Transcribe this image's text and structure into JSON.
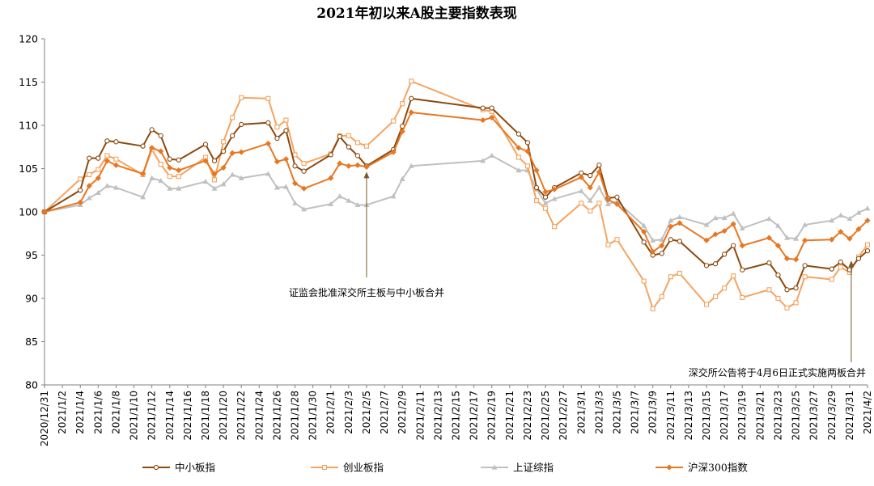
{
  "chart_data": {
    "type": "line",
    "title": "2021年初以来A股主要指数表现",
    "ylim": [
      80,
      120
    ],
    "yticks": [
      80,
      85,
      90,
      95,
      100,
      105,
      110,
      115,
      120
    ],
    "grid": false,
    "legend": "bottom",
    "x": [
      "2020/12/31",
      "2021/1/4",
      "2021/1/5",
      "2021/1/6",
      "2021/1/7",
      "2021/1/8",
      "2021/1/11",
      "2021/1/12",
      "2021/1/13",
      "2021/1/14",
      "2021/1/15",
      "2021/1/18",
      "2021/1/19",
      "2021/1/20",
      "2021/1/21",
      "2021/1/22",
      "2021/1/25",
      "2021/1/26",
      "2021/1/27",
      "2021/1/28",
      "2021/1/29",
      "2021/2/1",
      "2021/2/2",
      "2021/2/3",
      "2021/2/4",
      "2021/2/5",
      "2021/2/8",
      "2021/2/9",
      "2021/2/10",
      "2021/2/18",
      "2021/2/19",
      "2021/2/22",
      "2021/2/23",
      "2021/2/24",
      "2021/2/25",
      "2021/2/26",
      "2021/3/1",
      "2021/3/2",
      "2021/3/3",
      "2021/3/4",
      "2021/3/5",
      "2021/3/8",
      "2021/3/9",
      "2021/3/10",
      "2021/3/11",
      "2021/3/12",
      "2021/3/15",
      "2021/3/16",
      "2021/3/17",
      "2021/3/18",
      "2021/3/19",
      "2021/3/22",
      "2021/3/23",
      "2021/3/24",
      "2021/3/25",
      "2021/3/26",
      "2021/3/29",
      "2021/3/30",
      "2021/3/31",
      "2021/4/1",
      "2021/4/2"
    ],
    "x_tick_labels": [
      "2020/12/31",
      "2021/1/2",
      "2021/1/4",
      "2021/1/6",
      "2021/1/8",
      "2021/1/10",
      "2021/1/12",
      "2021/1/14",
      "2021/1/16",
      "2021/1/18",
      "2021/1/20",
      "2021/1/22",
      "2021/1/24",
      "2021/1/26",
      "2021/1/28",
      "2021/1/30",
      "2021/2/1",
      "2021/2/3",
      "2021/2/5",
      "2021/2/7",
      "2021/2/9",
      "2021/2/11",
      "2021/2/13",
      "2021/2/15",
      "2021/2/17",
      "2021/2/19",
      "2021/2/21",
      "2021/2/23",
      "2021/2/25",
      "2021/2/27",
      "2021/3/1",
      "2021/3/3",
      "2021/3/5",
      "2021/3/7",
      "2021/3/9",
      "2021/3/11",
      "2021/3/13",
      "2021/3/15",
      "2021/3/17",
      "2021/3/19",
      "2021/3/21",
      "2021/3/23",
      "2021/3/25",
      "2021/3/27",
      "2021/3/29",
      "2021/3/31",
      "2021/4/2"
    ],
    "series": [
      {
        "name": "中小板指",
        "color": "#8B4A0F",
        "marker": "circle",
        "values": [
          100,
          102.5,
          106.2,
          106.2,
          108.2,
          108.1,
          107.6,
          109.5,
          108.8,
          106.1,
          106.0,
          107.8,
          105.9,
          107.0,
          108.8,
          110.1,
          110.3,
          108.5,
          109.4,
          105.3,
          104.7,
          106.6,
          108.7,
          107.5,
          106.5,
          105.3,
          107.2,
          109.9,
          113.1,
          112.0,
          112.0,
          109.0,
          108.0,
          102.8,
          101.7,
          102.8,
          104.5,
          104.2,
          105.4,
          101.6,
          101.7,
          96.5,
          95.0,
          95.2,
          96.8,
          96.6,
          93.8,
          94.0,
          95.1,
          96.1,
          93.3,
          94.1,
          92.7,
          91.0,
          91.2,
          93.8,
          93.4,
          94.2,
          93.3,
          94.6,
          95.5
        ]
      },
      {
        "name": "创业板指",
        "color": "#F4A460",
        "marker": "square",
        "values": [
          100,
          103.8,
          104.3,
          104.9,
          106.5,
          106.1,
          104.3,
          107.2,
          105.5,
          104.1,
          104.1,
          106.3,
          103.7,
          108.1,
          110.9,
          113.2,
          113.1,
          109.8,
          110.6,
          106.6,
          105.6,
          106.7,
          108.8,
          108.8,
          108.0,
          107.6,
          110.5,
          112.5,
          115.1,
          111.8,
          111.6,
          106.3,
          105.3,
          101.3,
          100.4,
          98.3,
          101.0,
          100.1,
          101.0,
          96.2,
          96.8,
          92.0,
          88.8,
          90.2,
          92.5,
          92.9,
          89.3,
          90.2,
          91.2,
          92.6,
          90.1,
          91.0,
          90.0,
          88.9,
          89.5,
          92.5,
          92.2,
          93.6,
          93.0,
          94.8,
          96.2
        ]
      },
      {
        "name": "上证综指",
        "color": "#C0C0C0",
        "marker": "triangle",
        "values": [
          100,
          100.8,
          101.6,
          102.2,
          103.0,
          102.8,
          101.7,
          103.9,
          103.6,
          102.7,
          102.7,
          103.5,
          102.7,
          103.2,
          104.3,
          103.9,
          104.4,
          102.8,
          102.9,
          101.0,
          100.3,
          100.9,
          101.8,
          101.3,
          100.8,
          100.8,
          101.8,
          103.8,
          105.3,
          105.9,
          106.5,
          104.8,
          104.8,
          102.6,
          101.0,
          101.5,
          102.4,
          101.3,
          102.8,
          100.9,
          101.2,
          98.4,
          96.7,
          96.8,
          99.0,
          99.4,
          98.5,
          99.3,
          99.3,
          99.8,
          98.1,
          99.2,
          98.4,
          97.0,
          96.9,
          98.5,
          99.0,
          99.6,
          99.2,
          99.9,
          100.4
        ]
      },
      {
        "name": "沪深300指数",
        "color": "#E87722",
        "marker": "diamond",
        "values": [
          100,
          101.1,
          103.0,
          103.9,
          105.9,
          105.4,
          104.4,
          107.4,
          107.0,
          105.1,
          104.8,
          105.9,
          104.4,
          105.1,
          106.8,
          106.9,
          107.9,
          105.8,
          106.1,
          103.3,
          102.7,
          103.9,
          105.6,
          105.3,
          105.4,
          105.2,
          106.9,
          109.3,
          111.5,
          110.6,
          110.9,
          107.4,
          107.0,
          104.8,
          102.3,
          102.6,
          104.0,
          102.8,
          104.6,
          101.4,
          100.9,
          97.7,
          95.4,
          96.1,
          98.3,
          98.7,
          96.7,
          97.4,
          97.8,
          98.6,
          96.1,
          97.0,
          96.1,
          94.6,
          94.5,
          96.7,
          96.8,
          97.7,
          96.9,
          98.0,
          99.0
        ]
      }
    ],
    "annotations": [
      {
        "text": "证监会批准深交所主板与中小板合并",
        "x": "2021/2/5",
        "y": 105.2
      },
      {
        "text": "深交所公告将于4月6日正式实施两板合并",
        "x": "2021/3/31",
        "y": 94.0
      }
    ]
  }
}
